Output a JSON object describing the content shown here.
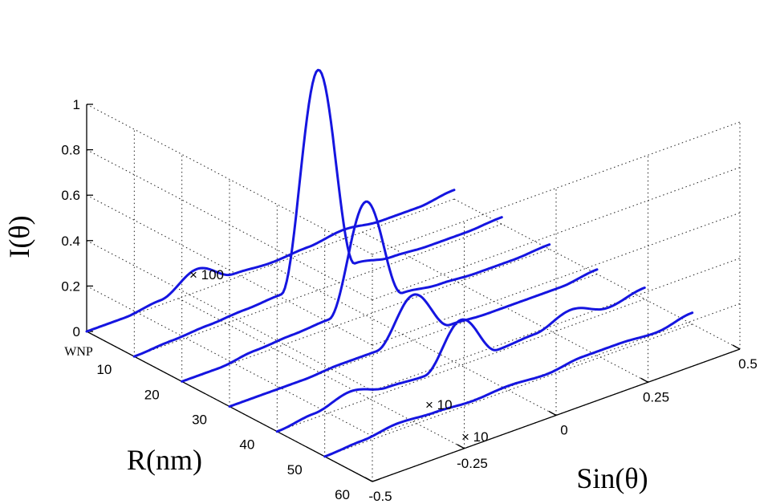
{
  "chart_data": {
    "type": "line",
    "subtype": "3d-waterfall",
    "title": "",
    "xlabel": "Sin(θ)",
    "ylabel": "R(nm)",
    "zlabel": "I(θ)",
    "xlim": [
      -0.5,
      0.5
    ],
    "ylim_categories": [
      "WNP",
      "10",
      "20",
      "30",
      "40",
      "50",
      "60"
    ],
    "zlim": [
      0,
      1
    ],
    "x_ticks": [
      "-0.5",
      "-0.25",
      "0",
      "0.25",
      "0.5"
    ],
    "x_tick_values": [
      -0.5,
      -0.25,
      0,
      0.25,
      0.5
    ],
    "y_ticks": [
      "WNP",
      "10",
      "20",
      "30",
      "40",
      "50",
      "60"
    ],
    "z_ticks": [
      "0",
      "0.2",
      "0.4",
      "0.6",
      "0.8",
      "1"
    ],
    "z_tick_values": [
      0,
      0.2,
      0.4,
      0.6,
      0.8,
      1
    ],
    "grid": true,
    "color": "#1515e0",
    "annotations": [
      "× 100",
      "× 10",
      "× 10"
    ],
    "series": [
      {
        "r": "WNP",
        "x": [
          -0.5,
          -0.4,
          -0.3,
          -0.2,
          -0.1,
          0.0,
          0.1,
          0.2,
          0.3,
          0.4,
          0.5
        ],
        "values": [
          0.0,
          0.0,
          0.02,
          0.1,
          0.02,
          0.01,
          0.02,
          0.04,
          0.02,
          0.02,
          0.04
        ]
      },
      {
        "r": "10",
        "x": [
          -0.5,
          -0.4,
          -0.3,
          -0.2,
          -0.1,
          0.0,
          0.1,
          0.2,
          0.3,
          0.4,
          0.5
        ],
        "values": [
          0.0,
          0.01,
          0.02,
          0.03,
          0.04,
          0.97,
          0.06,
          0.03,
          0.02,
          0.02,
          0.03
        ]
      },
      {
        "r": "20",
        "x": [
          -0.5,
          -0.4,
          -0.3,
          -0.2,
          -0.1,
          0.0,
          0.1,
          0.2,
          0.3,
          0.4,
          0.5
        ],
        "values": [
          0.0,
          0.0,
          0.02,
          0.03,
          0.04,
          0.5,
          0.04,
          0.02,
          0.01,
          0.01,
          0.02
        ]
      },
      {
        "r": "30",
        "x": [
          -0.5,
          -0.4,
          -0.3,
          -0.2,
          -0.1,
          0.0,
          0.1,
          0.2,
          0.3,
          0.4,
          0.5
        ],
        "values": [
          0.0,
          0.0,
          0.0,
          0.01,
          0.01,
          0.2,
          0.01,
          0.0,
          0.0,
          0.0,
          0.02
        ]
      },
      {
        "r": "40",
        "x": [
          -0.5,
          -0.4,
          -0.3,
          -0.2,
          -0.1,
          0.0,
          0.1,
          0.2,
          0.3,
          0.4,
          0.5
        ],
        "values": [
          0.0,
          0.02,
          0.06,
          0.02,
          0.01,
          0.2,
          0.01,
          0.02,
          0.07,
          0.02,
          0.05
        ]
      },
      {
        "r": "50",
        "x": [
          -0.5,
          -0.4,
          -0.3,
          -0.2,
          -0.1,
          0.0,
          0.1,
          0.2,
          0.3,
          0.4,
          0.5
        ],
        "values": [
          0.0,
          0.01,
          0.03,
          0.02,
          0.01,
          0.02,
          0.01,
          0.03,
          0.03,
          0.02,
          0.05
        ]
      }
    ]
  }
}
